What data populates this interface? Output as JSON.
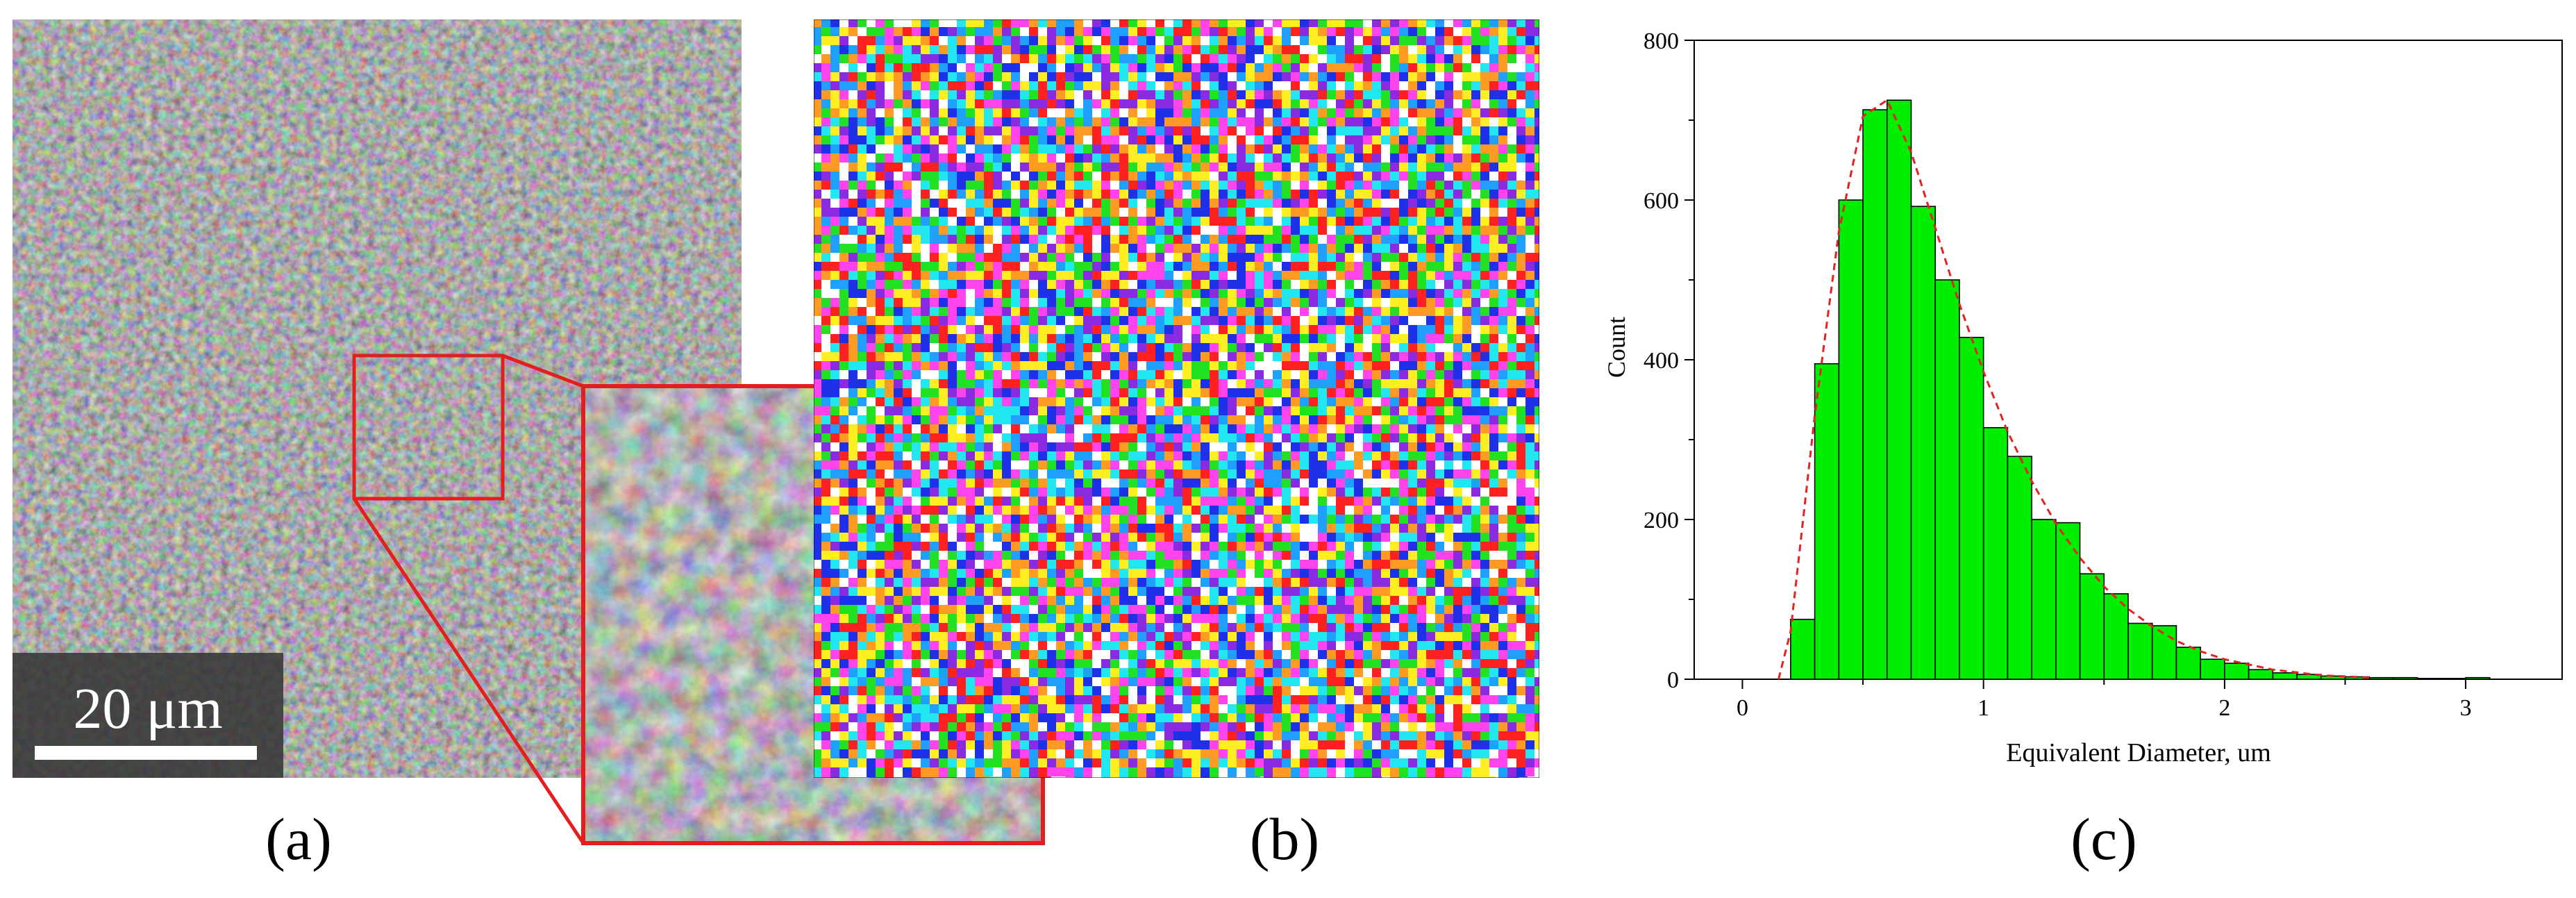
{
  "panels": {
    "a": {
      "caption": "(a)",
      "scale_bar_label": "20 μm",
      "colors": {
        "highlight": "#e41e1e",
        "scale_bg": "#333333"
      }
    },
    "b": {
      "caption": "(b)",
      "colors": [
        "#ff2020",
        "#1e30e8",
        "#22e022",
        "#ffee22",
        "#ff44ee",
        "#22e6f0",
        "#ff9a22",
        "#8a2be2",
        "#ffffff",
        "#1fa0ff"
      ]
    },
    "c": {
      "caption": "(c)"
    }
  },
  "chart_data": {
    "type": "bar",
    "xlabel": "Equivalent Diameter, um",
    "ylabel": "Count",
    "xlim": [
      -0.2,
      3.4
    ],
    "ylim": [
      0,
      800
    ],
    "xticks": [
      0,
      1,
      2,
      3
    ],
    "yticks": [
      0,
      200,
      400,
      600,
      800
    ],
    "bin_width": 0.1,
    "bin_starts": [
      0.2,
      0.3,
      0.4,
      0.5,
      0.6,
      0.7,
      0.8,
      0.9,
      1.0,
      1.1,
      1.2,
      1.3,
      1.4,
      1.5,
      1.6,
      1.7,
      1.8,
      1.9,
      2.0,
      2.1,
      2.2,
      2.3,
      2.4,
      2.5,
      2.6,
      2.7,
      2.8,
      2.9,
      3.0
    ],
    "values": [
      75,
      395,
      600,
      713,
      725,
      592,
      500,
      428,
      315,
      279,
      200,
      196,
      132,
      107,
      70,
      67,
      40,
      25,
      20,
      12,
      8,
      6,
      4,
      3,
      2,
      2,
      1,
      1,
      2
    ],
    "fit_curve": {
      "style": "dashed",
      "x": [
        0.15,
        0.2,
        0.3,
        0.4,
        0.5,
        0.6,
        0.7,
        0.8,
        0.9,
        1.0,
        1.1,
        1.2,
        1.3,
        1.4,
        1.5,
        1.6,
        1.7,
        1.8,
        1.9,
        2.0,
        2.2,
        2.4,
        2.6
      ],
      "y": [
        0,
        60,
        330,
        560,
        705,
        725,
        660,
        565,
        470,
        385,
        310,
        248,
        195,
        152,
        116,
        88,
        66,
        48,
        35,
        25,
        12,
        5,
        2
      ]
    },
    "colors": {
      "bar": "#00ee00",
      "bar_edge": "#000000",
      "fit": "#e32222"
    },
    "grid": false
  }
}
